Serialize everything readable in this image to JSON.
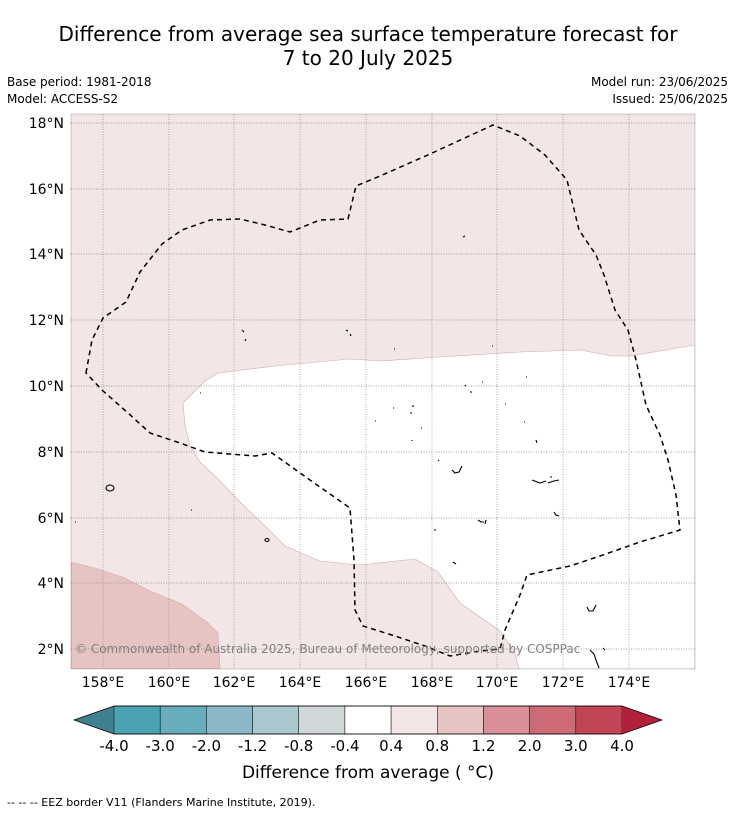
{
  "header": {
    "title_line1": "Difference from average sea surface temperature forecast for",
    "title_line2": "7 to 20 July 2025",
    "base_period": "Base period: 1981-2018",
    "model": "Model: ACCESS-S2",
    "model_run": "Model run: 23/06/2025",
    "issued": "Issued: 25/06/2025"
  },
  "map": {
    "lon_ticks": [
      "158°E",
      "160°E",
      "162°E",
      "164°E",
      "166°E",
      "168°E",
      "170°E",
      "172°E",
      "174°E"
    ],
    "lat_ticks": [
      "18°N",
      "16°N",
      "14°N",
      "12°N",
      "10°N",
      "8°N",
      "6°N",
      "4°N",
      "2°N"
    ],
    "copyright": "© Commonwealth of Australia 2025, Bureau of Meteorology, supported by COSPPac"
  },
  "colorbar": {
    "ticks": [
      "-4.0",
      "-3.0",
      "-2.0",
      "-1.2",
      "-0.8",
      "-0.4",
      "0.4",
      "0.8",
      "1.2",
      "2.0",
      "3.0",
      "4.0"
    ],
    "colors": [
      "#3f8190",
      "#4ba2b3",
      "#68adbd",
      "#8bb8c4",
      "#a9c7cc",
      "#d0d8d9",
      "#ffffff",
      "#f3e6e6",
      "#e6c4c2",
      "#d98f98",
      "#cc6a76",
      "#c04556",
      "#b01f3c"
    ],
    "title": "Difference from average ( °C)"
  },
  "footer": {
    "legend": "--  --  -- EEZ border V11 (Flanders Marine Institute, 2019)."
  }
}
